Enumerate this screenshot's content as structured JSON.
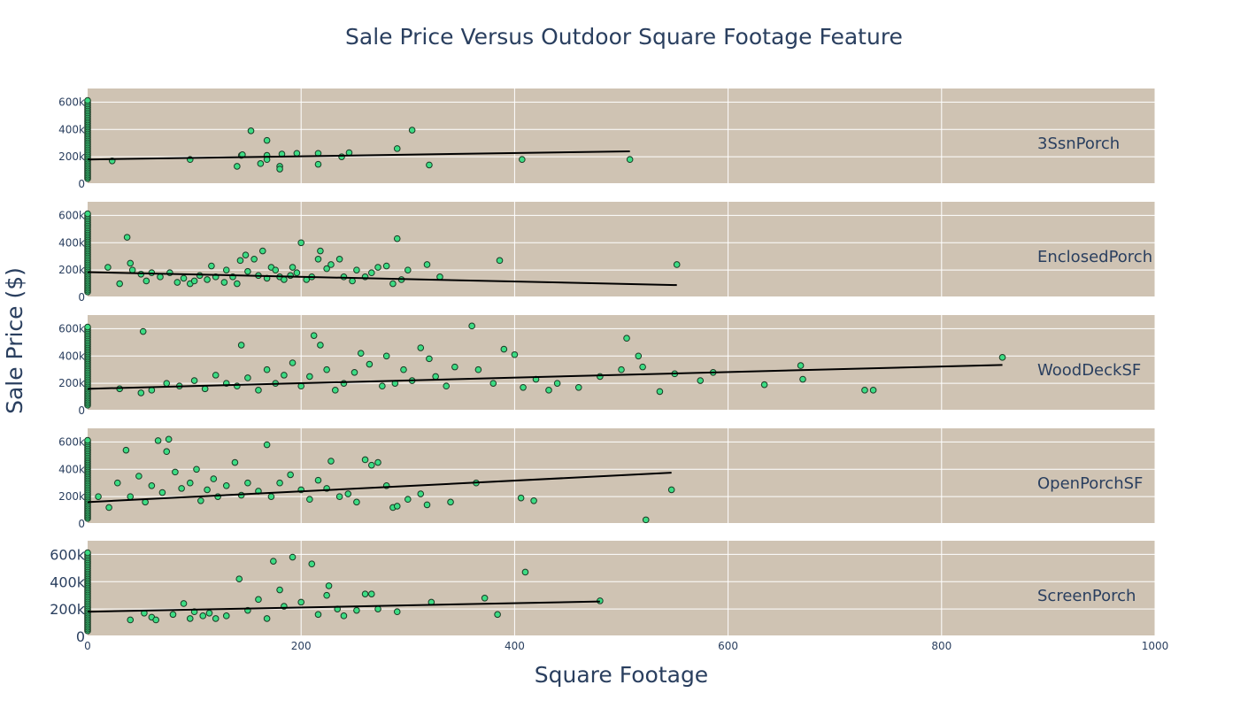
{
  "chart_data": {
    "type": "scatter",
    "title": "Sale Price Versus Outdoor Square Footage Feature",
    "xlabel": "Square Footage",
    "ylabel": "Sale Price ($)",
    "xlim": [
      0,
      1000
    ],
    "ylim": [
      0,
      700000
    ],
    "x_ticks": [
      "0",
      "200",
      "400",
      "600",
      "800",
      "1000"
    ],
    "y_ticks": [
      "0",
      "200k",
      "400k",
      "600k"
    ],
    "grid": true,
    "colors": {
      "panel_bg": "#cfc3b3",
      "marker_fill": "#3ddc84",
      "marker_edge": "#1a3a24",
      "trend": "#000000",
      "grid": "#ffffff"
    },
    "panels": [
      {
        "name": "3SsnPorch",
        "trend": [
          [
            0,
            180000
          ],
          [
            508,
            240000
          ]
        ],
        "points": [
          [
            23,
            170000
          ],
          [
            96,
            180000
          ],
          [
            140,
            130000
          ],
          [
            144,
            210000
          ],
          [
            145,
            215000
          ],
          [
            153,
            390000
          ],
          [
            162,
            150000
          ],
          [
            168,
            320000
          ],
          [
            168,
            210000
          ],
          [
            168,
            180000
          ],
          [
            180,
            130000
          ],
          [
            180,
            110000
          ],
          [
            182,
            220000
          ],
          [
            196,
            225000
          ],
          [
            216,
            225000
          ],
          [
            216,
            145000
          ],
          [
            238,
            200000
          ],
          [
            245,
            230000
          ],
          [
            290,
            260000
          ],
          [
            304,
            395000
          ],
          [
            320,
            140000
          ],
          [
            407,
            180000
          ],
          [
            508,
            180000
          ]
        ]
      },
      {
        "name": "EnclosedPorch",
        "trend": [
          [
            0,
            185000
          ],
          [
            552,
            90000
          ]
        ],
        "points": [
          [
            19,
            220000
          ],
          [
            30,
            100000
          ],
          [
            37,
            440000
          ],
          [
            40,
            250000
          ],
          [
            42,
            200000
          ],
          [
            50,
            170000
          ],
          [
            55,
            120000
          ],
          [
            60,
            180000
          ],
          [
            68,
            150000
          ],
          [
            77,
            180000
          ],
          [
            84,
            110000
          ],
          [
            90,
            140000
          ],
          [
            96,
            100000
          ],
          [
            100,
            120000
          ],
          [
            105,
            160000
          ],
          [
            112,
            130000
          ],
          [
            116,
            230000
          ],
          [
            120,
            150000
          ],
          [
            128,
            110000
          ],
          [
            130,
            200000
          ],
          [
            136,
            150000
          ],
          [
            140,
            100000
          ],
          [
            143,
            270000
          ],
          [
            148,
            310000
          ],
          [
            150,
            190000
          ],
          [
            156,
            280000
          ],
          [
            160,
            160000
          ],
          [
            164,
            340000
          ],
          [
            168,
            140000
          ],
          [
            172,
            220000
          ],
          [
            176,
            200000
          ],
          [
            180,
            150000
          ],
          [
            184,
            130000
          ],
          [
            190,
            160000
          ],
          [
            192,
            220000
          ],
          [
            196,
            180000
          ],
          [
            200,
            400000
          ],
          [
            205,
            130000
          ],
          [
            210,
            150000
          ],
          [
            216,
            280000
          ],
          [
            218,
            340000
          ],
          [
            224,
            210000
          ],
          [
            228,
            240000
          ],
          [
            236,
            280000
          ],
          [
            240,
            150000
          ],
          [
            248,
            120000
          ],
          [
            252,
            200000
          ],
          [
            260,
            150000
          ],
          [
            266,
            180000
          ],
          [
            272,
            220000
          ],
          [
            280,
            230000
          ],
          [
            286,
            100000
          ],
          [
            290,
            430000
          ],
          [
            294,
            130000
          ],
          [
            300,
            200000
          ],
          [
            318,
            240000
          ],
          [
            330,
            150000
          ],
          [
            386,
            270000
          ],
          [
            552,
            240000
          ]
        ]
      },
      {
        "name": "WoodDeckSF",
        "trend": [
          [
            0,
            160000
          ],
          [
            857,
            335000
          ]
        ],
        "points": [
          [
            30,
            160000
          ],
          [
            50,
            130000
          ],
          [
            52,
            580000
          ],
          [
            60,
            150000
          ],
          [
            74,
            200000
          ],
          [
            86,
            180000
          ],
          [
            100,
            220000
          ],
          [
            110,
            160000
          ],
          [
            120,
            260000
          ],
          [
            130,
            200000
          ],
          [
            140,
            180000
          ],
          [
            144,
            480000
          ],
          [
            150,
            240000
          ],
          [
            160,
            150000
          ],
          [
            168,
            300000
          ],
          [
            176,
            200000
          ],
          [
            184,
            260000
          ],
          [
            192,
            350000
          ],
          [
            200,
            180000
          ],
          [
            208,
            250000
          ],
          [
            212,
            550000
          ],
          [
            218,
            480000
          ],
          [
            224,
            300000
          ],
          [
            232,
            150000
          ],
          [
            240,
            200000
          ],
          [
            250,
            280000
          ],
          [
            256,
            420000
          ],
          [
            264,
            340000
          ],
          [
            276,
            180000
          ],
          [
            280,
            400000
          ],
          [
            288,
            200000
          ],
          [
            296,
            300000
          ],
          [
            304,
            220000
          ],
          [
            312,
            460000
          ],
          [
            320,
            380000
          ],
          [
            326,
            250000
          ],
          [
            336,
            180000
          ],
          [
            344,
            320000
          ],
          [
            360,
            620000
          ],
          [
            366,
            300000
          ],
          [
            380,
            200000
          ],
          [
            390,
            450000
          ],
          [
            400,
            410000
          ],
          [
            408,
            170000
          ],
          [
            420,
            230000
          ],
          [
            432,
            150000
          ],
          [
            440,
            200000
          ],
          [
            460,
            170000
          ],
          [
            480,
            250000
          ],
          [
            500,
            300000
          ],
          [
            505,
            530000
          ],
          [
            516,
            400000
          ],
          [
            520,
            320000
          ],
          [
            536,
            140000
          ],
          [
            550,
            270000
          ],
          [
            574,
            220000
          ],
          [
            586,
            280000
          ],
          [
            634,
            190000
          ],
          [
            668,
            330000
          ],
          [
            670,
            230000
          ],
          [
            728,
            150000
          ],
          [
            736,
            150000
          ],
          [
            857,
            390000
          ]
        ]
      },
      {
        "name": "OpenPorchSF",
        "trend": [
          [
            0,
            160000
          ],
          [
            547,
            375000
          ]
        ],
        "points": [
          [
            10,
            200000
          ],
          [
            20,
            120000
          ],
          [
            28,
            300000
          ],
          [
            36,
            540000
          ],
          [
            40,
            200000
          ],
          [
            48,
            350000
          ],
          [
            54,
            160000
          ],
          [
            60,
            280000
          ],
          [
            66,
            610000
          ],
          [
            70,
            230000
          ],
          [
            74,
            530000
          ],
          [
            76,
            620000
          ],
          [
            82,
            380000
          ],
          [
            88,
            260000
          ],
          [
            96,
            300000
          ],
          [
            102,
            400000
          ],
          [
            106,
            170000
          ],
          [
            112,
            250000
          ],
          [
            118,
            330000
          ],
          [
            122,
            200000
          ],
          [
            130,
            280000
          ],
          [
            138,
            450000
          ],
          [
            144,
            210000
          ],
          [
            150,
            300000
          ],
          [
            160,
            240000
          ],
          [
            168,
            580000
          ],
          [
            172,
            200000
          ],
          [
            180,
            300000
          ],
          [
            190,
            360000
          ],
          [
            200,
            250000
          ],
          [
            208,
            180000
          ],
          [
            216,
            320000
          ],
          [
            224,
            260000
          ],
          [
            228,
            460000
          ],
          [
            236,
            200000
          ],
          [
            244,
            220000
          ],
          [
            252,
            160000
          ],
          [
            260,
            470000
          ],
          [
            266,
            430000
          ],
          [
            272,
            450000
          ],
          [
            280,
            280000
          ],
          [
            286,
            120000
          ],
          [
            290,
            130000
          ],
          [
            300,
            180000
          ],
          [
            312,
            220000
          ],
          [
            318,
            140000
          ],
          [
            340,
            160000
          ],
          [
            364,
            300000
          ],
          [
            406,
            190000
          ],
          [
            418,
            170000
          ],
          [
            523,
            30000
          ],
          [
            547,
            250000
          ]
        ]
      },
      {
        "name": "ScreenPorch",
        "trend": [
          [
            0,
            180000
          ],
          [
            480,
            255000
          ]
        ],
        "points": [
          [
            40,
            120000
          ],
          [
            53,
            170000
          ],
          [
            60,
            140000
          ],
          [
            64,
            120000
          ],
          [
            80,
            160000
          ],
          [
            90,
            240000
          ],
          [
            96,
            130000
          ],
          [
            100,
            180000
          ],
          [
            108,
            150000
          ],
          [
            114,
            170000
          ],
          [
            120,
            130000
          ],
          [
            130,
            150000
          ],
          [
            142,
            420000
          ],
          [
            150,
            190000
          ],
          [
            160,
            270000
          ],
          [
            168,
            130000
          ],
          [
            174,
            550000
          ],
          [
            180,
            340000
          ],
          [
            184,
            220000
          ],
          [
            192,
            580000
          ],
          [
            200,
            250000
          ],
          [
            210,
            530000
          ],
          [
            216,
            160000
          ],
          [
            224,
            300000
          ],
          [
            226,
            370000
          ],
          [
            234,
            200000
          ],
          [
            240,
            150000
          ],
          [
            252,
            190000
          ],
          [
            260,
            310000
          ],
          [
            266,
            310000
          ],
          [
            272,
            200000
          ],
          [
            290,
            180000
          ],
          [
            322,
            250000
          ],
          [
            372,
            280000
          ],
          [
            384,
            160000
          ],
          [
            410,
            470000
          ],
          [
            480,
            260000
          ]
        ]
      }
    ]
  }
}
